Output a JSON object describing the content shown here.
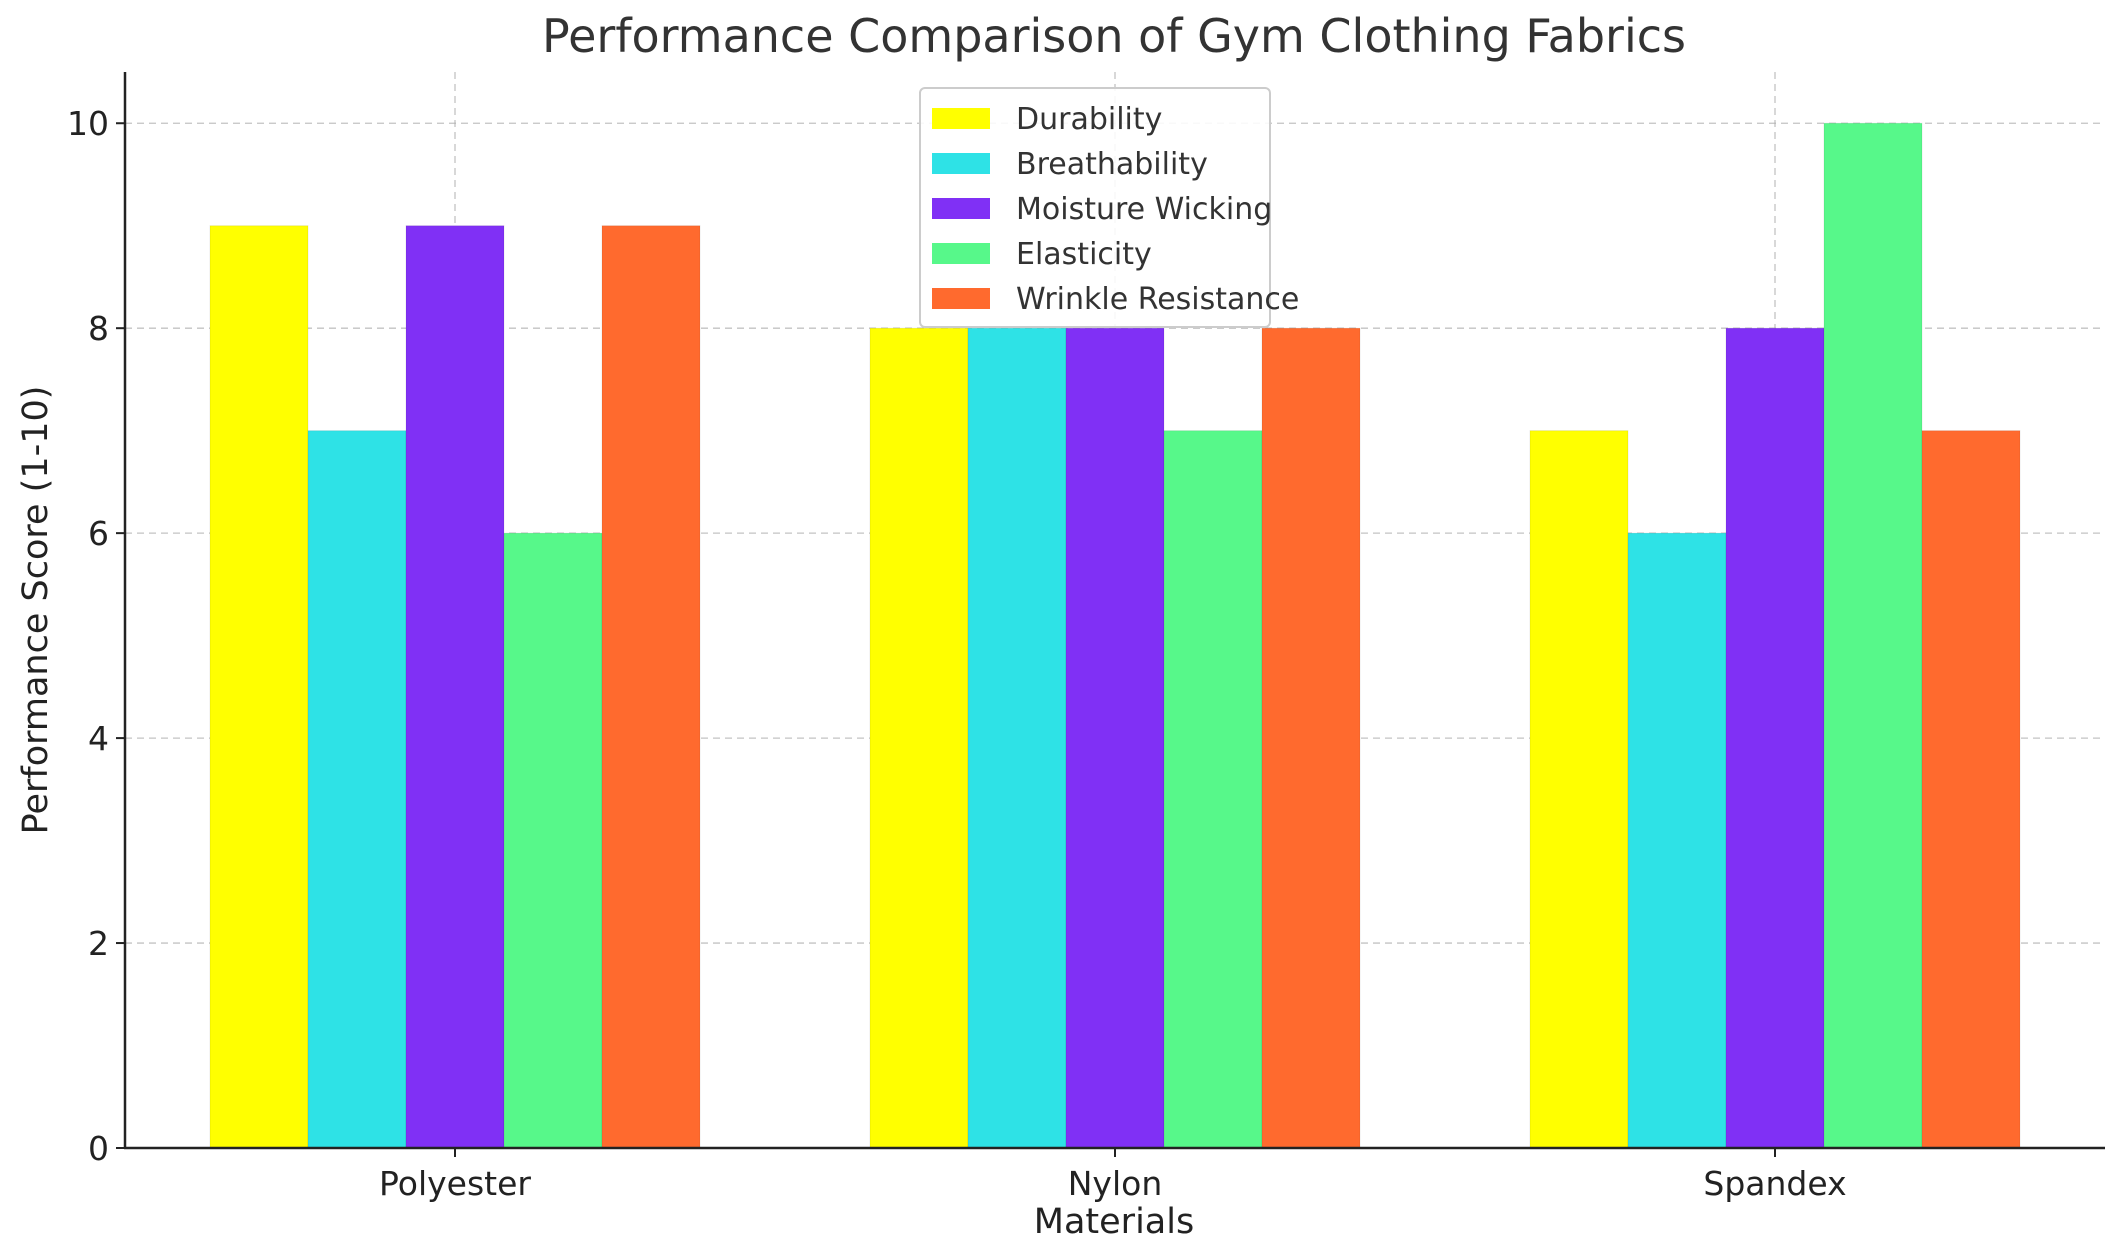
{
  "chart_data": {
    "type": "bar",
    "title": "Performance Comparison of Gym Clothing Fabrics",
    "xlabel": "Materials",
    "ylabel": "Performance Score (1-10)",
    "categories": [
      "Polyester",
      "Nylon",
      "Spandex"
    ],
    "series": [
      {
        "name": "Durability",
        "values": [
          9,
          8,
          7
        ],
        "color": "#ffff00"
      },
      {
        "name": "Breathability",
        "values": [
          7,
          8,
          6
        ],
        "color": "#2ee2e6"
      },
      {
        "name": "Moisture Wicking",
        "values": [
          9,
          8,
          8
        ],
        "color": "#8030f5"
      },
      {
        "name": "Elasticity",
        "values": [
          6,
          7,
          10
        ],
        "color": "#57f88a"
      },
      {
        "name": "Wrinkle Resistance",
        "values": [
          9,
          8,
          7
        ],
        "color": "#ff6a2e"
      }
    ],
    "ylim": [
      0,
      10.5
    ],
    "yticks": [
      "0",
      "2",
      "4",
      "6",
      "8",
      "10"
    ],
    "grid": true,
    "legend": "top-center"
  }
}
